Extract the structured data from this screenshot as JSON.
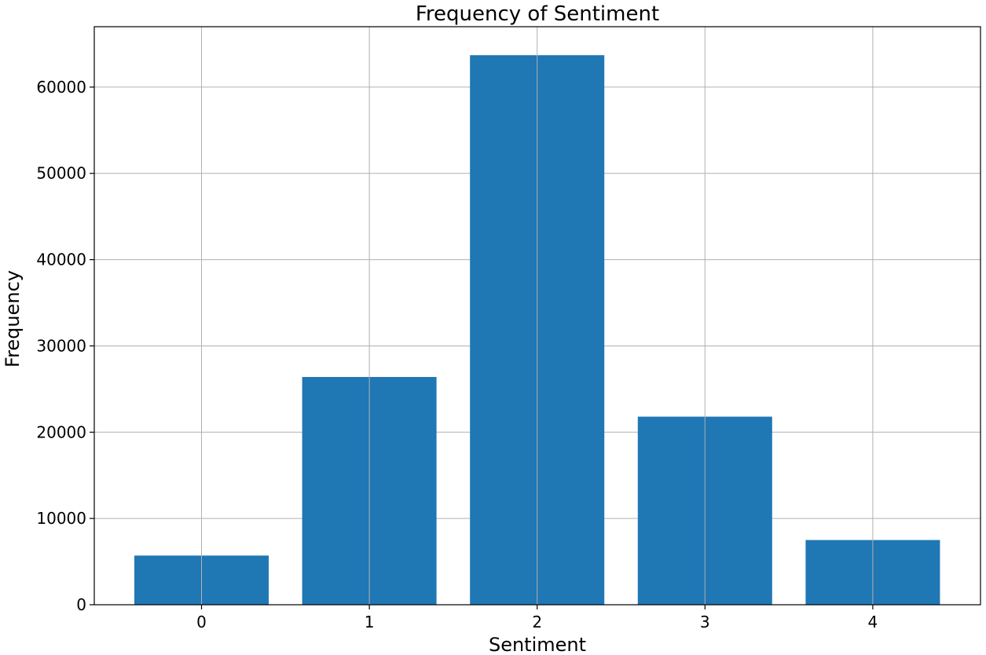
{
  "chart_data": {
    "type": "bar",
    "title": "Frequency of Sentiment",
    "xlabel": "Sentiment",
    "ylabel": "Frequency",
    "categories": [
      "0",
      "1",
      "2",
      "3",
      "4"
    ],
    "values": [
      5700,
      26400,
      63700,
      21800,
      7500
    ],
    "ylim": [
      0,
      67000
    ],
    "yticks": [
      0,
      10000,
      20000,
      30000,
      40000,
      50000,
      60000
    ],
    "ytick_labels": [
      "0",
      "10000",
      "20000",
      "30000",
      "40000",
      "50000",
      "60000"
    ],
    "grid": true,
    "bar_color": "#1f77b4"
  }
}
